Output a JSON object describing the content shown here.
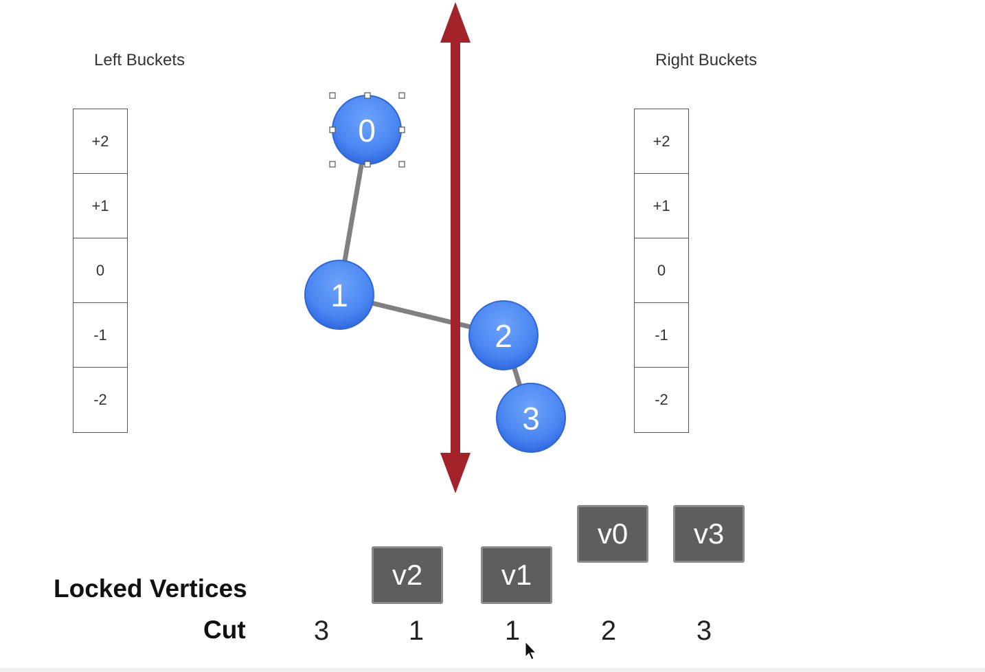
{
  "left_buckets": {
    "title": "Left Buckets",
    "cells": [
      "+2",
      "+1",
      "0",
      "-1",
      "-2"
    ]
  },
  "right_buckets": {
    "title": "Right Buckets",
    "cells": [
      "+2",
      "+1",
      "0",
      "-1",
      "-2"
    ]
  },
  "graph": {
    "nodes": [
      "0",
      "1",
      "2",
      "3"
    ],
    "edges": [
      [
        "0",
        "1"
      ],
      [
        "1",
        "2"
      ],
      [
        "2",
        "3"
      ]
    ],
    "selected_node": "0",
    "colors": {
      "node": "#4f8ef5",
      "node_dark": "#2f6be6",
      "edge": "#808080",
      "cut_line": "#a3232b"
    }
  },
  "locked": {
    "label": "Locked Vertices",
    "vertices": [
      "v2",
      "v1",
      "v0",
      "v3"
    ]
  },
  "cut": {
    "label": "Cut",
    "values": [
      "3",
      "1",
      "1",
      "2",
      "3"
    ]
  }
}
